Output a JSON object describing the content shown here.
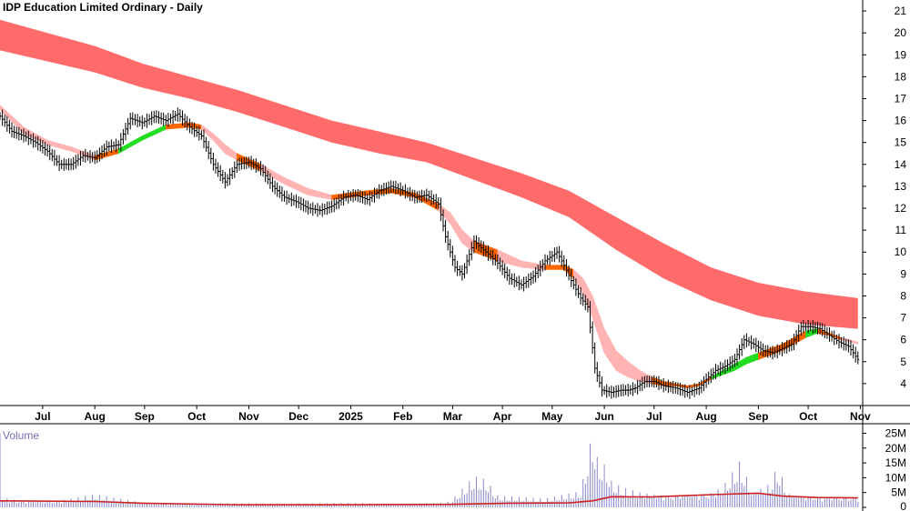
{
  "chart_data": {
    "type": "line",
    "title": "IDP Education Limited Ordinary - Daily",
    "price_axis": {
      "ticks": [
        4,
        5,
        6,
        7,
        8,
        9,
        10,
        11,
        12,
        13,
        14,
        15,
        16,
        17,
        18,
        19,
        20,
        21
      ],
      "range": [
        3,
        21.5
      ]
    },
    "volume_axis": {
      "label": "Volume",
      "ticks": [
        "0",
        "5M",
        "10M",
        "15M",
        "20M",
        "25M"
      ],
      "tick_values": [
        0,
        5,
        10,
        15,
        20,
        25
      ],
      "range": [
        0,
        27
      ]
    },
    "x_labels": [
      "Jul",
      "Aug",
      "Sep",
      "Oct",
      "Nov",
      "Dec",
      "2025",
      "Feb",
      "Mar",
      "Apr",
      "May",
      "Jun",
      "Jul",
      "Aug",
      "Sep",
      "Oct",
      "Nov"
    ],
    "x_label_days": [
      18,
      40,
      61,
      83,
      105,
      126,
      148,
      170,
      191,
      212,
      233,
      255,
      276,
      298,
      320,
      341,
      363
    ],
    "price_series": [
      [
        0,
        16.2
      ],
      [
        5,
        15.5
      ],
      [
        10,
        15.3
      ],
      [
        15,
        15.0
      ],
      [
        20,
        14.6
      ],
      [
        25,
        14.0
      ],
      [
        30,
        14.0
      ],
      [
        35,
        14.4
      ],
      [
        40,
        14.3
      ],
      [
        45,
        14.8
      ],
      [
        50,
        14.9
      ],
      [
        55,
        16.1
      ],
      [
        60,
        15.9
      ],
      [
        65,
        16.2
      ],
      [
        70,
        16.0
      ],
      [
        75,
        16.3
      ],
      [
        80,
        15.7
      ],
      [
        85,
        15.3
      ],
      [
        90,
        14.0
      ],
      [
        95,
        13.2
      ],
      [
        100,
        14.0
      ],
      [
        105,
        14.1
      ],
      [
        110,
        13.8
      ],
      [
        115,
        13.0
      ],
      [
        120,
        12.5
      ],
      [
        125,
        12.3
      ],
      [
        130,
        12.0
      ],
      [
        135,
        11.9
      ],
      [
        140,
        12.1
      ],
      [
        145,
        12.5
      ],
      [
        150,
        12.6
      ],
      [
        155,
        12.4
      ],
      [
        160,
        12.8
      ],
      [
        165,
        13.0
      ],
      [
        170,
        12.8
      ],
      [
        175,
        12.5
      ],
      [
        180,
        12.6
      ],
      [
        185,
        12.2
      ],
      [
        188,
        10.7
      ],
      [
        192,
        9.3
      ],
      [
        195,
        9.0
      ],
      [
        200,
        10.5
      ],
      [
        205,
        10.0
      ],
      [
        210,
        9.5
      ],
      [
        215,
        8.8
      ],
      [
        220,
        8.5
      ],
      [
        225,
        8.9
      ],
      [
        230,
        9.6
      ],
      [
        235,
        10.0
      ],
      [
        238,
        9.4
      ],
      [
        241,
        8.7
      ],
      [
        245,
        7.9
      ],
      [
        248,
        7.5
      ],
      [
        251,
        4.7
      ],
      [
        254,
        3.7
      ],
      [
        258,
        3.6
      ],
      [
        262,
        3.7
      ],
      [
        265,
        3.7
      ],
      [
        268,
        3.8
      ],
      [
        272,
        4.1
      ],
      [
        276,
        4.1
      ],
      [
        280,
        3.9
      ],
      [
        285,
        3.8
      ],
      [
        290,
        3.6
      ],
      [
        295,
        3.8
      ],
      [
        298,
        4.2
      ],
      [
        302,
        4.6
      ],
      [
        306,
        4.8
      ],
      [
        310,
        5.1
      ],
      [
        314,
        6.0
      ],
      [
        318,
        5.8
      ],
      [
        322,
        5.5
      ],
      [
        326,
        5.4
      ],
      [
        330,
        5.6
      ],
      [
        334,
        5.8
      ],
      [
        338,
        6.6
      ],
      [
        342,
        6.6
      ],
      [
        346,
        6.5
      ],
      [
        350,
        6.2
      ],
      [
        354,
        5.9
      ],
      [
        358,
        5.7
      ],
      [
        362,
        5.1
      ]
    ],
    "short_mma_band": [
      [
        0,
        16.7,
        16.5
      ],
      [
        10,
        15.7,
        15.4
      ],
      [
        20,
        15.1,
        14.9
      ],
      [
        30,
        14.8,
        14.6
      ],
      [
        40,
        14.4,
        14.2
      ],
      [
        50,
        14.7,
        14.5
      ],
      [
        55,
        15.0,
        14.8
      ],
      [
        60,
        15.3,
        15.1
      ],
      [
        70,
        15.8,
        15.6
      ],
      [
        80,
        15.9,
        15.7
      ],
      [
        85,
        15.8,
        15.6
      ],
      [
        90,
        15.4,
        15.1
      ],
      [
        95,
        14.9,
        14.5
      ],
      [
        100,
        14.5,
        14.2
      ],
      [
        110,
        14.0,
        13.7
      ],
      [
        120,
        13.4,
        13.1
      ],
      [
        130,
        12.9,
        12.6
      ],
      [
        140,
        12.6,
        12.4
      ],
      [
        148,
        12.7,
        12.5
      ],
      [
        155,
        12.8,
        12.6
      ],
      [
        165,
        12.9,
        12.7
      ],
      [
        175,
        12.7,
        12.5
      ],
      [
        185,
        12.2,
        11.9
      ],
      [
        190,
        11.8,
        11.3
      ],
      [
        195,
        11.0,
        10.4
      ],
      [
        200,
        10.5,
        10.0
      ],
      [
        210,
        10.1,
        9.6
      ],
      [
        220,
        9.6,
        9.3
      ],
      [
        230,
        9.4,
        9.2
      ],
      [
        238,
        9.4,
        9.2
      ],
      [
        242,
        9.2,
        8.8
      ],
      [
        246,
        8.8,
        8.1
      ],
      [
        250,
        8.0,
        7.0
      ],
      [
        255,
        6.5,
        5.4
      ],
      [
        260,
        5.5,
        4.6
      ],
      [
        265,
        5.0,
        4.3
      ],
      [
        270,
        4.6,
        4.1
      ],
      [
        275,
        4.3,
        4.0
      ],
      [
        280,
        4.1,
        3.9
      ],
      [
        285,
        4.0,
        3.9
      ],
      [
        290,
        3.9,
        3.8
      ],
      [
        295,
        4.0,
        3.9
      ],
      [
        300,
        4.3,
        4.2
      ],
      [
        305,
        4.6,
        4.4
      ],
      [
        310,
        4.9,
        4.6
      ],
      [
        315,
        5.2,
        4.9
      ],
      [
        320,
        5.4,
        5.1
      ],
      [
        325,
        5.6,
        5.3
      ],
      [
        330,
        5.8,
        5.5
      ],
      [
        335,
        6.1,
        5.8
      ],
      [
        340,
        6.4,
        6.1
      ],
      [
        345,
        6.5,
        6.3
      ],
      [
        350,
        6.3,
        6.2
      ],
      [
        355,
        6.1,
        6.0
      ],
      [
        362,
        5.9,
        5.8
      ]
    ],
    "long_mma_band": [
      [
        0,
        20.6,
        19.2
      ],
      [
        20,
        20.0,
        18.7
      ],
      [
        40,
        19.4,
        18.2
      ],
      [
        60,
        18.6,
        17.5
      ],
      [
        80,
        18.0,
        17.0
      ],
      [
        100,
        17.4,
        16.4
      ],
      [
        120,
        16.7,
        15.7
      ],
      [
        140,
        16.0,
        15.0
      ],
      [
        160,
        15.5,
        14.5
      ],
      [
        180,
        15.0,
        14.1
      ],
      [
        200,
        14.3,
        13.3
      ],
      [
        220,
        13.6,
        12.5
      ],
      [
        240,
        12.8,
        11.6
      ],
      [
        260,
        11.6,
        10.1
      ],
      [
        280,
        10.4,
        8.8
      ],
      [
        300,
        9.3,
        7.8
      ],
      [
        320,
        8.6,
        7.1
      ],
      [
        340,
        8.2,
        6.7
      ],
      [
        362,
        7.9,
        6.5
      ]
    ],
    "volume_series": [
      [
        0,
        25.0
      ],
      [
        1,
        3.2
      ],
      [
        10,
        2.0
      ],
      [
        20,
        1.5
      ],
      [
        40,
        4.5
      ],
      [
        60,
        1.6
      ],
      [
        75,
        1.2
      ],
      [
        95,
        1.4
      ],
      [
        120,
        1.3
      ],
      [
        148,
        1.5
      ],
      [
        170,
        1.2
      ],
      [
        185,
        1.5
      ],
      [
        190,
        2.0
      ],
      [
        200,
        10.5
      ],
      [
        205,
        9.5
      ],
      [
        210,
        4.0
      ],
      [
        230,
        3.0
      ],
      [
        245,
        5.5
      ],
      [
        250,
        25.5
      ],
      [
        252,
        17.0
      ],
      [
        254,
        15.0
      ],
      [
        256,
        14.0
      ],
      [
        258,
        9.0
      ],
      [
        262,
        7.0
      ],
      [
        270,
        5.0
      ],
      [
        285,
        3.5
      ],
      [
        298,
        3.8
      ],
      [
        305,
        7.0
      ],
      [
        312,
        15.5
      ],
      [
        318,
        5.0
      ],
      [
        325,
        8.0
      ],
      [
        328,
        14.0
      ],
      [
        333,
        4.5
      ],
      [
        340,
        3.0
      ],
      [
        350,
        2.5
      ],
      [
        362,
        2.0
      ]
    ],
    "volume_avg": [
      [
        0,
        2.2
      ],
      [
        40,
        2.0
      ],
      [
        60,
        1.4
      ],
      [
        100,
        0.9
      ],
      [
        148,
        0.9
      ],
      [
        190,
        1.0
      ],
      [
        215,
        1.4
      ],
      [
        240,
        1.5
      ],
      [
        250,
        2.2
      ],
      [
        258,
        3.6
      ],
      [
        275,
        3.5
      ],
      [
        300,
        4.3
      ],
      [
        320,
        4.8
      ],
      [
        330,
        3.8
      ],
      [
        345,
        3.3
      ],
      [
        362,
        3.2
      ]
    ],
    "colors": {
      "long_band": "#ff6a6a",
      "short_band": "#ffb3b3",
      "uptrend": "#22dd22",
      "downtrend": "#ff6600",
      "volume_bar": "#8888cc",
      "volume_avg": "#cc2222",
      "axis": "#000000"
    }
  }
}
